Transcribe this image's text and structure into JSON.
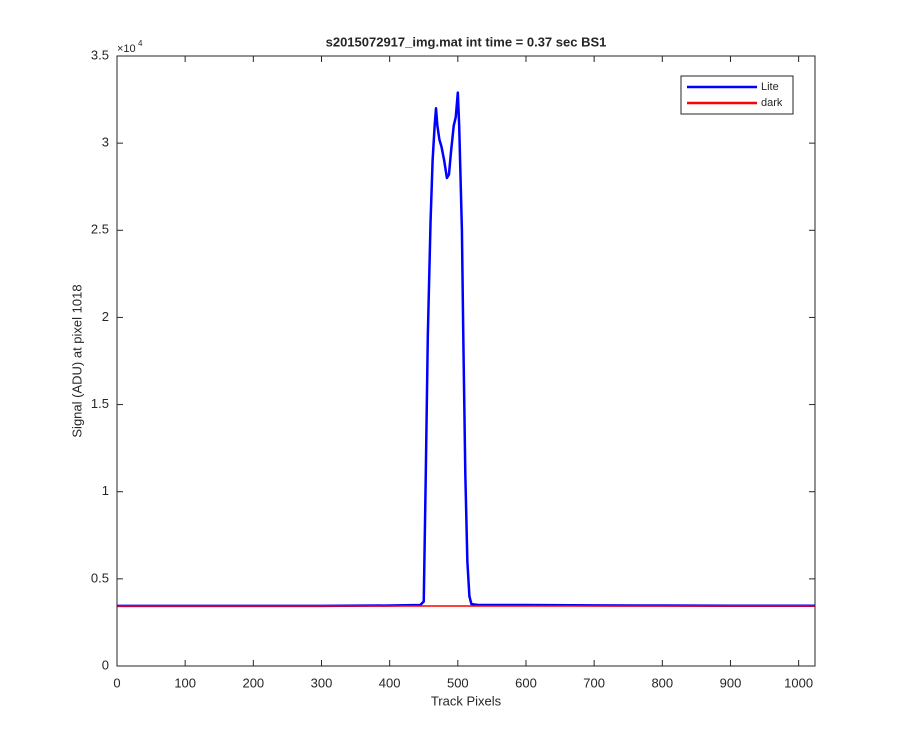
{
  "chart_data": {
    "type": "line",
    "title": "s2015072917_img.mat int time = 0.37 sec   BS1",
    "x_label": "Track Pixels",
    "y_label": "Signal (ADU) at pixel 1018",
    "y_exponent_base": "×10",
    "y_exponent_power": "4",
    "xlim": [
      0,
      1024
    ],
    "ylim": [
      0,
      35000
    ],
    "xticks": [
      0,
      100,
      200,
      300,
      400,
      500,
      600,
      700,
      800,
      900,
      1000
    ],
    "yticks": [
      {
        "value": 0,
        "label": "0"
      },
      {
        "value": 5000,
        "label": "0.5"
      },
      {
        "value": 10000,
        "label": "1"
      },
      {
        "value": 15000,
        "label": "1.5"
      },
      {
        "value": 20000,
        "label": "2"
      },
      {
        "value": 25000,
        "label": "2.5"
      },
      {
        "value": 30000,
        "label": "3"
      },
      {
        "value": 35000,
        "label": "3.5"
      }
    ],
    "legend_position": "upper right",
    "series": [
      {
        "name": "Lite",
        "color": "#0000ff",
        "x": [
          0,
          100,
          200,
          300,
          400,
          445,
          450,
          453,
          456,
          460,
          463,
          466,
          468,
          470,
          473,
          476,
          480,
          484,
          487,
          490,
          494,
          497,
          500,
          502,
          504,
          506,
          508,
          511,
          514,
          517,
          520,
          530,
          600,
          700,
          800,
          900,
          1024
        ],
        "values": [
          3450,
          3450,
          3450,
          3450,
          3470,
          3500,
          3700,
          11000,
          19000,
          25500,
          29000,
          31000,
          32000,
          31000,
          30200,
          29800,
          29000,
          28000,
          28200,
          29500,
          31000,
          31500,
          32900,
          31000,
          28000,
          25000,
          19000,
          11000,
          6000,
          4000,
          3550,
          3500,
          3500,
          3480,
          3470,
          3460,
          3460
        ]
      },
      {
        "name": "dark",
        "color": "#ff0000",
        "x": [
          0,
          100,
          200,
          300,
          400,
          500,
          600,
          700,
          800,
          900,
          1024
        ],
        "values": [
          3440,
          3440,
          3445,
          3440,
          3440,
          3440,
          3445,
          3440,
          3440,
          3440,
          3440
        ]
      }
    ]
  }
}
